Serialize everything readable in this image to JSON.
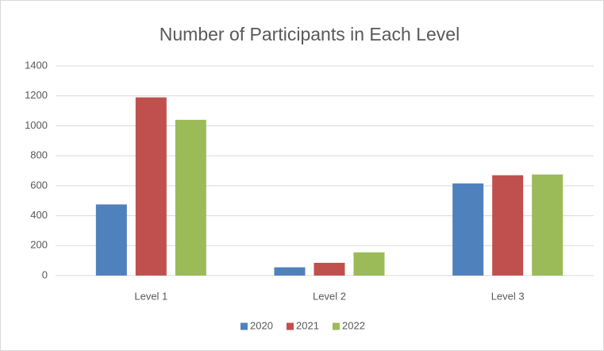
{
  "chart_data": {
    "type": "bar",
    "title": "Number of Participants in Each Level",
    "categories": [
      "Level 1",
      "Level 2",
      "Level 3"
    ],
    "series": [
      {
        "name": "2020",
        "color": "#4f81bd",
        "values": [
          475,
          55,
          615
        ]
      },
      {
        "name": "2021",
        "color": "#c0504d",
        "values": [
          1190,
          85,
          670
        ]
      },
      {
        "name": "2022",
        "color": "#9bbb59",
        "values": [
          1040,
          155,
          675
        ]
      }
    ],
    "ylim": [
      0,
      1400
    ],
    "yticks": [
      0,
      200,
      400,
      600,
      800,
      1000,
      1200,
      1400
    ],
    "grid": true,
    "legend": "bottom"
  }
}
